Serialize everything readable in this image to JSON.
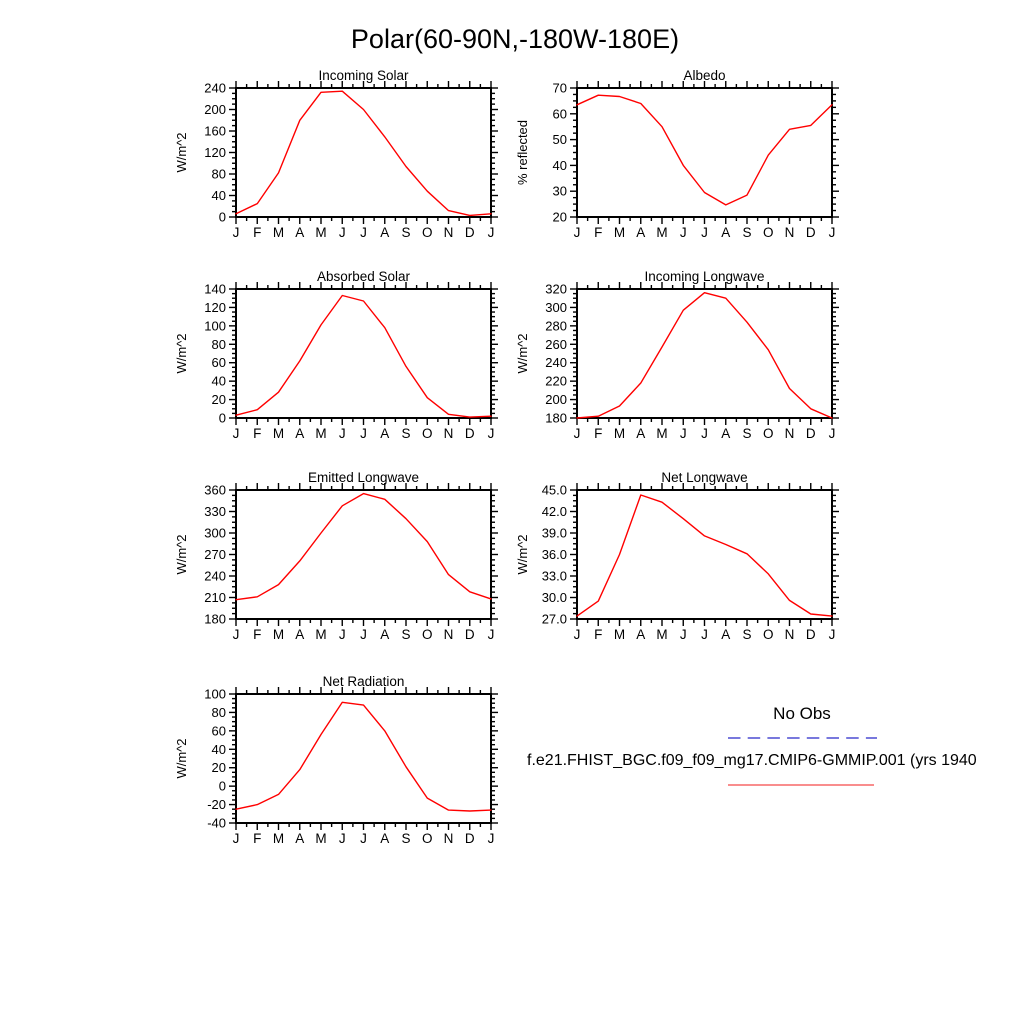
{
  "page_title": "Polar(60-90N,-180W-180E)",
  "months": [
    "J",
    "F",
    "M",
    "A",
    "M",
    "J",
    "J",
    "A",
    "S",
    "O",
    "N",
    "D",
    "J"
  ],
  "line_color": "#ff0000",
  "axis_color": "#000000",
  "legend": {
    "no_obs_label": "No Obs",
    "no_obs_color": "#7878dd",
    "no_obs_style": "dashed",
    "model_label": "f.e21.FHIST_BGC.f09_f09_mg17.CMIP6-GMMIP.001 (yrs 1940",
    "model_color": "#f87d7d",
    "model_style": "solid"
  },
  "chart_data": [
    {
      "type": "line",
      "title": "Incoming Solar",
      "ylabel": "W/m^2",
      "xlabel": "",
      "ylim": [
        0,
        240
      ],
      "ytick_step": 40,
      "ytick_labels": [
        "0",
        "40",
        "80",
        "120",
        "160",
        "200",
        "240"
      ],
      "grid": false,
      "categories": [
        "J",
        "F",
        "M",
        "A",
        "M",
        "J",
        "J",
        "A",
        "S",
        "O",
        "N",
        "D",
        "J"
      ],
      "values": [
        6,
        25,
        82,
        180,
        232,
        234,
        200,
        149,
        94,
        48,
        12,
        3,
        6
      ]
    },
    {
      "type": "line",
      "title": "Albedo",
      "ylabel": "% reflected",
      "xlabel": "",
      "ylim": [
        20,
        70
      ],
      "ytick_step": 10,
      "ytick_labels": [
        "20",
        "30",
        "40",
        "50",
        "60",
        "70"
      ],
      "grid": false,
      "categories": [
        "J",
        "F",
        "M",
        "A",
        "M",
        "J",
        "J",
        "A",
        "S",
        "O",
        "N",
        "D",
        "J"
      ],
      "values": [
        63.5,
        67.2,
        66.7,
        64,
        55,
        40,
        29.5,
        24.7,
        28.5,
        44,
        54,
        55.5,
        63.5
      ]
    },
    {
      "type": "line",
      "title": "Absorbed Solar",
      "ylabel": "W/m^2",
      "xlabel": "",
      "ylim": [
        0,
        140
      ],
      "ytick_step": 20,
      "ytick_labels": [
        "0",
        "20",
        "40",
        "60",
        "80",
        "100",
        "120",
        "140"
      ],
      "grid": false,
      "categories": [
        "J",
        "F",
        "M",
        "A",
        "M",
        "J",
        "J",
        "A",
        "S",
        "O",
        "N",
        "D",
        "J"
      ],
      "values": [
        3,
        9,
        28,
        62,
        101,
        133,
        127,
        98,
        56,
        22,
        4,
        1,
        2
      ]
    },
    {
      "type": "line",
      "title": "Incoming Longwave",
      "ylabel": "W/m^2",
      "xlabel": "",
      "ylim": [
        180,
        320
      ],
      "ytick_step": 20,
      "ytick_labels": [
        "180",
        "200",
        "220",
        "240",
        "260",
        "280",
        "300",
        "320"
      ],
      "grid": false,
      "categories": [
        "J",
        "F",
        "M",
        "A",
        "M",
        "J",
        "J",
        "A",
        "S",
        "O",
        "N",
        "D",
        "J"
      ],
      "values": [
        180,
        182,
        193,
        218,
        257,
        297,
        316,
        310,
        284,
        254,
        212,
        190,
        180
      ]
    },
    {
      "type": "line",
      "title": "Emitted Longwave",
      "ylabel": "W/m^2",
      "xlabel": "",
      "ylim": [
        180,
        360
      ],
      "ytick_step": 30,
      "ytick_labels": [
        "180",
        "210",
        "240",
        "270",
        "300",
        "330",
        "360"
      ],
      "grid": false,
      "categories": [
        "J",
        "F",
        "M",
        "A",
        "M",
        "J",
        "J",
        "A",
        "S",
        "O",
        "N",
        "D",
        "J"
      ],
      "values": [
        207,
        211,
        228,
        261,
        300,
        338,
        355,
        347,
        320,
        288,
        242,
        218,
        208
      ]
    },
    {
      "type": "line",
      "title": "Net Longwave",
      "ylabel": "W/m^2",
      "xlabel": "",
      "ylim": [
        27,
        45
      ],
      "ytick_step": 3,
      "ytick_labels": [
        "27.0",
        "30.0",
        "33.0",
        "36.0",
        "39.0",
        "42.0",
        "45.0"
      ],
      "grid": false,
      "categories": [
        "J",
        "F",
        "M",
        "A",
        "M",
        "J",
        "J",
        "A",
        "S",
        "O",
        "N",
        "D",
        "J"
      ],
      "values": [
        27.4,
        29.5,
        36.0,
        44.3,
        43.3,
        41.0,
        38.6,
        37.4,
        36.1,
        33.3,
        29.6,
        27.7,
        27.4
      ]
    },
    {
      "type": "line",
      "title": "Net Radiation",
      "ylabel": "W/m^2",
      "xlabel": "",
      "ylim": [
        -40,
        100
      ],
      "ytick_step": 20,
      "ytick_labels": [
        "-40",
        "-20",
        "0",
        "20",
        "40",
        "60",
        "80",
        "100"
      ],
      "grid": false,
      "categories": [
        "J",
        "F",
        "M",
        "A",
        "M",
        "J",
        "J",
        "A",
        "S",
        "O",
        "N",
        "D",
        "J"
      ],
      "values": [
        -25,
        -20,
        -9,
        18,
        56,
        91,
        88,
        60,
        21,
        -13,
        -26,
        -27,
        -26
      ]
    }
  ]
}
